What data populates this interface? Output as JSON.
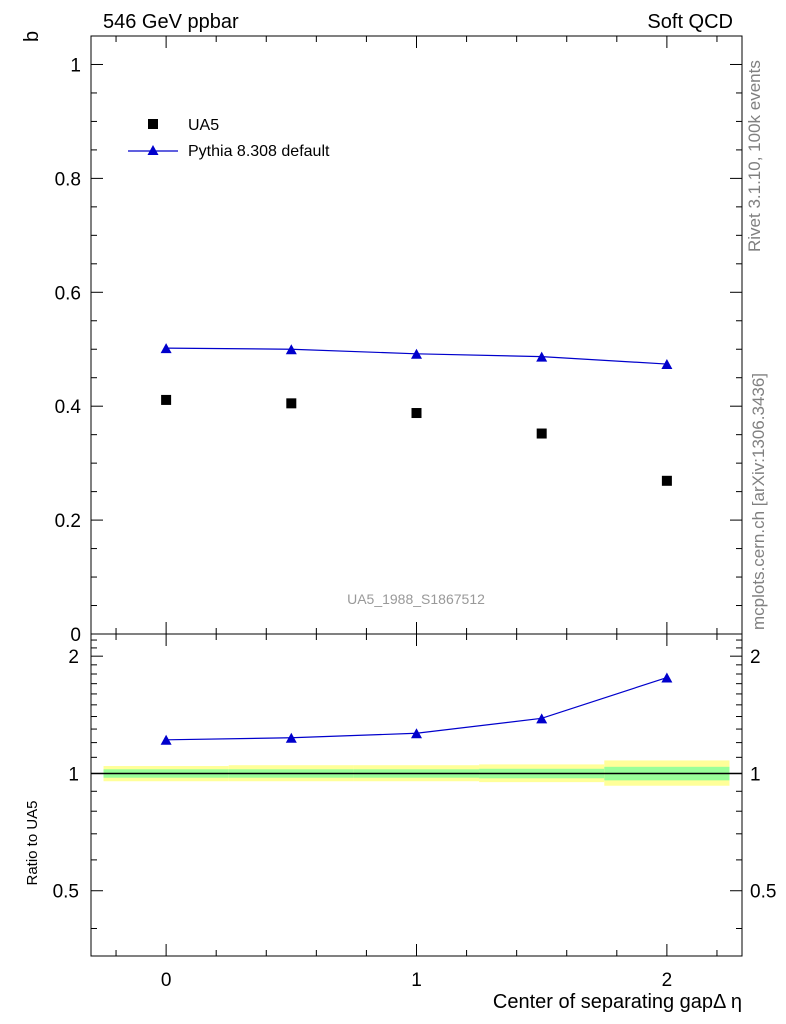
{
  "header": {
    "left": "546 GeV ppbar",
    "right": "Soft QCD"
  },
  "side_labels": {
    "rivet": "Rivet 3.1.10,  100k events",
    "mcplots": "mcplots.cern.ch [arXiv:1306.3436]"
  },
  "watermark": "UA5_1988_S1867512",
  "colors": {
    "data": "#000000",
    "mc": "#0000cc",
    "band_outer": "#ffff99",
    "band_inner": "#99ff99"
  },
  "chart_data": [
    {
      "type": "scatter",
      "panel": "main",
      "ylabel": "b",
      "xlim": [
        -0.3,
        2.3
      ],
      "ylim": [
        0,
        1.05
      ],
      "yticks": [
        0,
        0.2,
        0.4,
        0.6,
        0.8,
        1
      ],
      "ytick_labels": [
        "0",
        "0.2",
        "0.4",
        "0.6",
        "0.8",
        "1"
      ],
      "legend_position": "top-left",
      "series": [
        {
          "name": "UA5",
          "marker": "square",
          "x": [
            0,
            0.5,
            1,
            1.5,
            2
          ],
          "y": [
            0.411,
            0.405,
            0.388,
            0.352,
            0.269
          ]
        },
        {
          "name": "Pythia 8.308 default",
          "marker": "triangle",
          "line": true,
          "x": [
            0,
            0.5,
            1,
            1.5,
            2
          ],
          "y": [
            0.502,
            0.5,
            0.492,
            0.487,
            0.474
          ]
        }
      ]
    },
    {
      "type": "line",
      "panel": "ratio",
      "ylabel": "Ratio to UA5",
      "xlabel": "Center of separating gapΔ η",
      "xlim": [
        -0.3,
        2.3
      ],
      "ylim": [
        0.34,
        2.28
      ],
      "yticks": [
        0.5,
        1,
        2
      ],
      "ytick_labels": [
        "0.5",
        "1",
        "2"
      ],
      "xticks": [
        0,
        1,
        2
      ],
      "xtick_labels": [
        "0",
        "1",
        "2"
      ],
      "reference": 1,
      "bands": [
        {
          "x0": -0.25,
          "x1": 0.25,
          "inner": [
            0.975,
            1.025
          ],
          "outer": [
            0.955,
            1.045
          ]
        },
        {
          "x0": 0.25,
          "x1": 0.75,
          "inner": [
            0.975,
            1.025
          ],
          "outer": [
            0.955,
            1.05
          ]
        },
        {
          "x0": 0.75,
          "x1": 1.25,
          "inner": [
            0.975,
            1.025
          ],
          "outer": [
            0.955,
            1.05
          ]
        },
        {
          "x0": 1.25,
          "x1": 1.75,
          "inner": [
            0.972,
            1.028
          ],
          "outer": [
            0.95,
            1.055
          ]
        },
        {
          "x0": 1.75,
          "x1": 2.25,
          "inner": [
            0.96,
            1.04
          ],
          "outer": [
            0.93,
            1.08
          ]
        }
      ],
      "series": [
        {
          "name": "Pythia 8.308 default",
          "marker": "triangle",
          "x": [
            0,
            0.5,
            1,
            1.5,
            2
          ],
          "y": [
            1.22,
            1.235,
            1.268,
            1.385,
            1.763
          ]
        }
      ]
    }
  ]
}
